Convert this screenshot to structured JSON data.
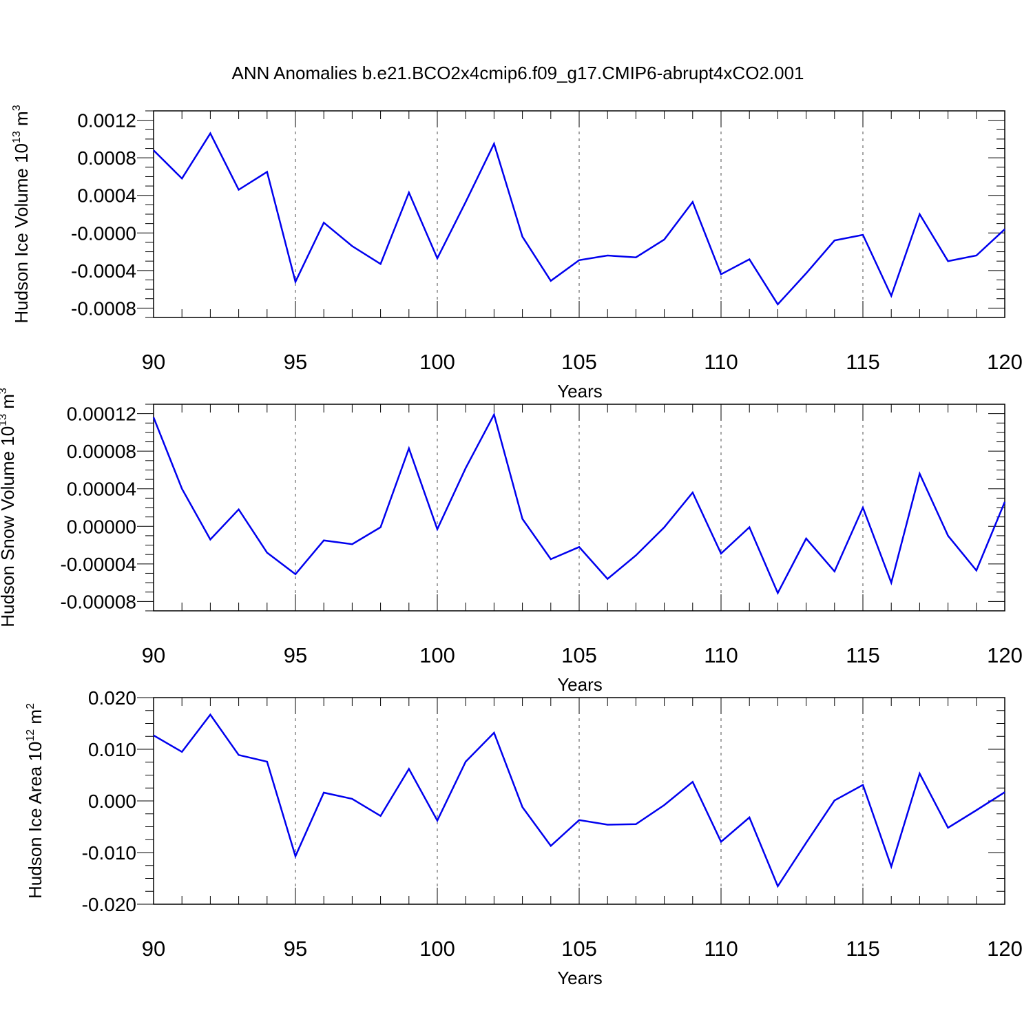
{
  "title": "ANN Anomalies b.e21.BCO2x4cmip6.f09_g17.CMIP6-abrupt4xCO2.001",
  "colors": {
    "series": "#0000ee",
    "axis": "#000000",
    "background": "#ffffff"
  },
  "chart_data": [
    {
      "type": "line",
      "title": "",
      "xlabel": "Years",
      "ylabel": "Hudson Ice Volume 10",
      "ylabel_exp": "13",
      "ylabel_unit": " m",
      "ylabel_unit_exp": "3",
      "xlim": [
        90,
        120
      ],
      "ylim": [
        -0.0009,
        0.0013
      ],
      "xticks": [
        90,
        95,
        100,
        105,
        110,
        115,
        120
      ],
      "xtick_labels": [
        "90",
        "95",
        "100",
        "105",
        "110",
        "115",
        "120"
      ],
      "yticks": [
        0.0012,
        0.0008,
        0.0004,
        0.0,
        -0.0004,
        -0.0008
      ],
      "ytick_labels": [
        "0.0012",
        "0.0008",
        "0.0004",
        "-0.0000",
        "-0.0004",
        "-0.0008"
      ],
      "grid": "vertical dashed at major x ticks",
      "x": [
        90,
        91,
        92,
        93,
        94,
        95,
        96,
        97,
        98,
        99,
        100,
        101,
        102,
        103,
        104,
        105,
        106,
        107,
        108,
        109,
        110,
        111,
        112,
        113,
        114,
        115,
        116,
        117,
        118,
        119,
        120
      ],
      "series": [
        {
          "values": [
            0.00088,
            0.00058,
            0.00106,
            0.00046,
            0.00065,
            -0.00052,
            0.00011,
            -0.00014,
            -0.00033,
            0.00043,
            -0.00027,
            0.00033,
            0.00095,
            -4e-05,
            -0.00051,
            -0.00029,
            -0.00024,
            -0.00026,
            -7e-05,
            0.00033,
            -0.00044,
            -0.00028,
            -0.00076,
            -0.00043,
            -8e-05,
            -2e-05,
            -0.00067,
            0.0002,
            -0.0003,
            -0.00024,
            4e-05
          ]
        }
      ]
    },
    {
      "type": "line",
      "title": "",
      "xlabel": "Years",
      "ylabel": "Hudson Snow Volume 10",
      "ylabel_exp": "13",
      "ylabel_unit": " m",
      "ylabel_unit_exp": "3",
      "xlim": [
        90,
        120
      ],
      "ylim": [
        -9e-05,
        0.00013
      ],
      "xticks": [
        90,
        95,
        100,
        105,
        110,
        115,
        120
      ],
      "xtick_labels": [
        "90",
        "95",
        "100",
        "105",
        "110",
        "115",
        "120"
      ],
      "yticks": [
        0.00012,
        8e-05,
        4e-05,
        0.0,
        -4e-05,
        -8e-05
      ],
      "ytick_labels": [
        "0.00012",
        "0.00008",
        "0.00004",
        "0.00000",
        "-0.00004",
        "-0.00008"
      ],
      "grid": "vertical dashed at major x ticks",
      "x": [
        90,
        91,
        92,
        93,
        94,
        95,
        96,
        97,
        98,
        99,
        100,
        101,
        102,
        103,
        104,
        105,
        106,
        107,
        108,
        109,
        110,
        111,
        112,
        113,
        114,
        115,
        116,
        117,
        118,
        119,
        120
      ],
      "series": [
        {
          "values": [
            0.000116,
            4e-05,
            -1.4e-05,
            1.8e-05,
            -2.8e-05,
            -5.1e-05,
            -1.5e-05,
            -1.9e-05,
            -1e-06,
            8.3e-05,
            -3e-06,
            6.2e-05,
            0.000119,
            8e-06,
            -3.5e-05,
            -2.2e-05,
            -5.6e-05,
            -3.1e-05,
            -1e-06,
            3.6e-05,
            -2.9e-05,
            -1e-06,
            -7.1e-05,
            -1.3e-05,
            -4.8e-05,
            2e-05,
            -6e-05,
            5.6e-05,
            -1e-05,
            -4.7e-05,
            2.6e-05
          ]
        }
      ]
    },
    {
      "type": "line",
      "title": "",
      "xlabel": "Years",
      "ylabel": "Hudson Ice Area 10",
      "ylabel_exp": "12",
      "ylabel_unit": " m",
      "ylabel_unit_exp": "2",
      "xlim": [
        90,
        120
      ],
      "ylim": [
        -0.02,
        0.02
      ],
      "xticks": [
        90,
        95,
        100,
        105,
        110,
        115,
        120
      ],
      "xtick_labels": [
        "90",
        "95",
        "100",
        "105",
        "110",
        "115",
        "120"
      ],
      "yticks": [
        0.02,
        0.01,
        0.0,
        -0.01,
        -0.02
      ],
      "ytick_labels": [
        "0.020",
        "0.010",
        "0.000",
        "-0.010",
        "-0.020"
      ],
      "grid": "vertical dashed at major x ticks",
      "x": [
        90,
        91,
        92,
        93,
        94,
        95,
        96,
        97,
        98,
        99,
        100,
        101,
        102,
        103,
        104,
        105,
        106,
        107,
        108,
        109,
        110,
        111,
        112,
        113,
        114,
        115,
        116,
        117,
        118,
        119,
        120
      ],
      "series": [
        {
          "values": [
            0.0127,
            0.0095,
            0.0167,
            0.0089,
            0.0076,
            -0.0107,
            0.0016,
            0.0004,
            -0.0029,
            0.0062,
            -0.0038,
            0.0076,
            0.0132,
            -0.0012,
            -0.0087,
            -0.0037,
            -0.0046,
            -0.0045,
            -0.0008,
            0.0037,
            -0.0079,
            -0.0032,
            -0.0165,
            -0.0081,
            0.0001,
            0.0031,
            -0.0127,
            0.0053,
            -0.0052,
            -0.0018,
            0.0017
          ]
        }
      ]
    }
  ]
}
